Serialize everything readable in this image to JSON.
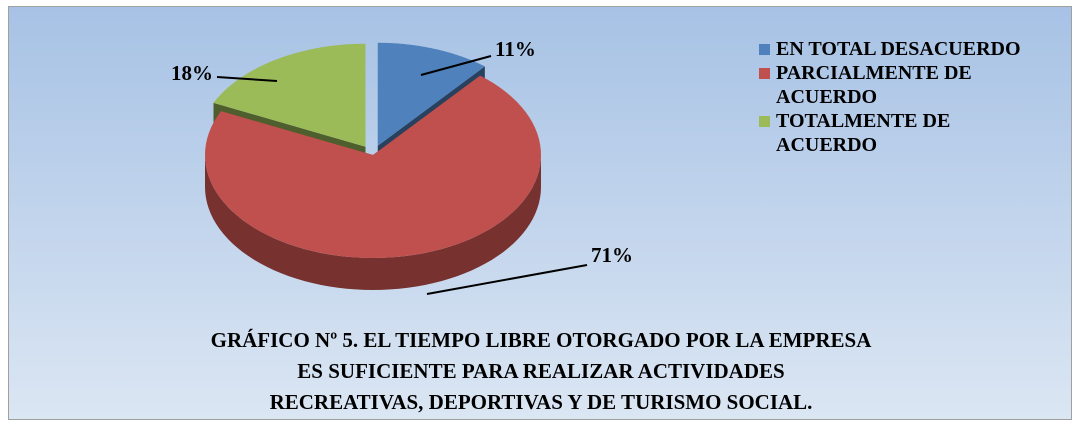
{
  "chart_data": {
    "type": "pie",
    "title": [
      "GRÁFICO Nº 5. EL TIEMPO LIBRE OTORGADO POR LA EMPRESA",
      "ES SUFICIENTE PARA REALIZAR ACTIVIDADES",
      "RECREATIVAS, DEPORTIVAS Y DE TURISMO SOCIAL."
    ],
    "categories": [
      "EN TOTAL DESACUERDO",
      "PARCIALMENTE DE ACUERDO",
      "TOTALMENTE DE ACUERDO"
    ],
    "values": [
      11,
      71,
      18
    ],
    "value_labels": [
      "11%",
      "71%",
      "18%"
    ],
    "colors": [
      "#4f81bd",
      "#c0504d",
      "#9bbb59"
    ],
    "legend": "right"
  }
}
